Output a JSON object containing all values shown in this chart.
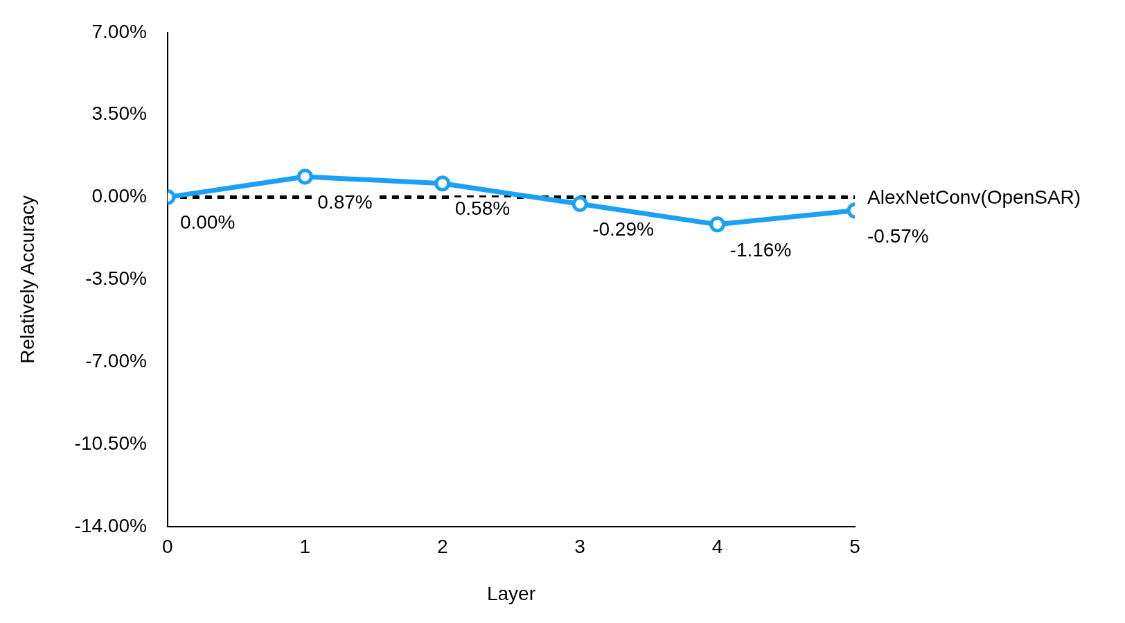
{
  "chart_data": {
    "type": "line",
    "xlabel": "Layer",
    "ylabel": "Relatively Accuracy",
    "xlim": [
      0,
      5
    ],
    "xticks": [
      0,
      1,
      2,
      3,
      4,
      5
    ],
    "ylim": [
      -14,
      7
    ],
    "yticks": [
      {
        "value": -14,
        "label": "-14.00%"
      },
      {
        "value": -10.5,
        "label": "-10.50%"
      },
      {
        "value": -7,
        "label": "-7.00%"
      },
      {
        "value": -3.5,
        "label": "-3.50%"
      },
      {
        "value": 0,
        "label": "0.00%"
      },
      {
        "value": 3.5,
        "label": "3.50%"
      },
      {
        "value": 7,
        "label": "7.00%"
      }
    ],
    "x": [
      0,
      1,
      2,
      3,
      4,
      5
    ],
    "series": [
      {
        "name": "AlexNetConv(OpenSAR)",
        "color": "#1aa0f5",
        "values": [
          0,
          0.87,
          0.58,
          -0.29,
          -1.16,
          -0.57
        ],
        "value_labels": [
          "0.00%",
          "0.87%",
          "0.58%",
          "-0.29%",
          "-1.16%",
          "-0.57%"
        ]
      }
    ],
    "ref_lines": [
      {
        "axis": "y",
        "value": 0,
        "color": "#000000",
        "line_style": "dashed"
      }
    ],
    "grid": false,
    "legend": false,
    "marker": "circle",
    "line_style": "solid"
  }
}
